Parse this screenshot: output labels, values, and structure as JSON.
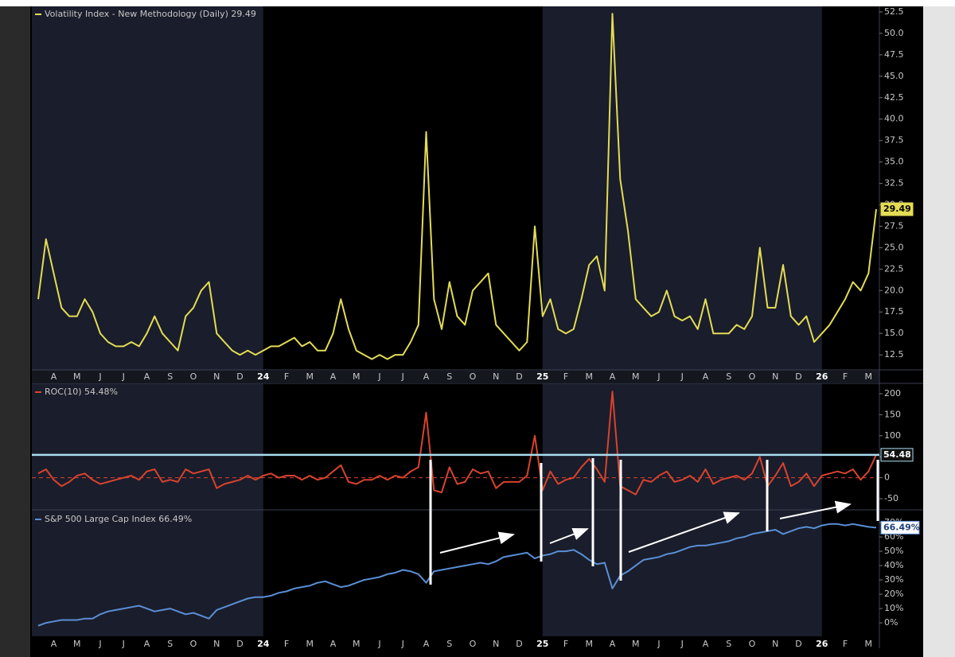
{
  "chart_data": [
    {
      "type": "line",
      "ylim": [
        10.75,
        53.15
      ],
      "yticks": [
        12.5,
        {
          "value": 15,
          "label": "15.0"
        },
        17.5,
        {
          "value": 20,
          "label": "20.0"
        },
        22.5,
        {
          "value": 25,
          "label": "25.0"
        },
        27.5,
        {
          "value": 30,
          "label": "30.0"
        },
        32.5,
        {
          "value": 35,
          "label": "35.0"
        },
        37.5,
        {
          "value": 40,
          "label": "40.0"
        },
        42.5,
        {
          "value": 45,
          "label": "45.0"
        },
        47.5,
        {
          "value": 50,
          "label": "50.0"
        },
        52.5
      ],
      "categories": [
        null,
        null,
        "A",
        null,
        null,
        "M",
        null,
        null,
        "J",
        null,
        null,
        "J",
        null,
        null,
        "A",
        null,
        null,
        "S",
        null,
        null,
        "O",
        null,
        null,
        "N",
        null,
        null,
        "D",
        null,
        null,
        "24",
        null,
        null,
        "F",
        null,
        null,
        "M",
        null,
        null,
        "A",
        null,
        null,
        "M",
        null,
        null,
        "J",
        null,
        null,
        "J",
        null,
        null,
        "A",
        null,
        null,
        "S",
        null,
        null,
        "O",
        null,
        null,
        "N",
        null,
        null,
        "D",
        null,
        null,
        "25",
        null,
        null,
        "F",
        null,
        null,
        "M",
        null,
        null,
        "A",
        null,
        null,
        "M",
        null,
        null,
        "J",
        null,
        null,
        "J",
        null,
        null,
        "A",
        null,
        null,
        "S",
        null,
        null,
        "O",
        null,
        null,
        "N",
        null,
        null,
        "D",
        null,
        null,
        "26",
        null,
        null,
        "F",
        null,
        null,
        "M",
        null
      ],
      "series": [
        {
          "name": "Volatility Index - New Methodology (Daily) 29.49",
          "color": "#e3dc55",
          "values": [
            19,
            26,
            22,
            18,
            17,
            17,
            19,
            17.5,
            15,
            14,
            13.5,
            13.5,
            14,
            13.5,
            15,
            17,
            15,
            14,
            13,
            17,
            18,
            20,
            21,
            15,
            14,
            13,
            12.5,
            13,
            12.5,
            13,
            13.5,
            13.5,
            14,
            14.5,
            13.5,
            14,
            13,
            13,
            15,
            19,
            15.5,
            13,
            12.5,
            12,
            12.5,
            12,
            12.5,
            12.5,
            14,
            16,
            38.5,
            19,
            15.5,
            21,
            17,
            16,
            20,
            21,
            22,
            16,
            15,
            14,
            13,
            14,
            27.5,
            17,
            19,
            15.5,
            15,
            15.5,
            19,
            23,
            24,
            20,
            52.3,
            33,
            27,
            19,
            18,
            17,
            17.5,
            20,
            17,
            16.5,
            17,
            15.5,
            19,
            15,
            15,
            15,
            16,
            15.5,
            17,
            25,
            18,
            18,
            23,
            17,
            16,
            17,
            14,
            15,
            16,
            17.5,
            19,
            21,
            20,
            22,
            29.49
          ]
        }
      ]
    },
    {
      "type": "line",
      "ylim": [
        -76.5,
        222.7
      ],
      "yticks": [
        -50,
        0,
        50,
        100,
        150,
        200
      ],
      "zero_line": true,
      "hline": 54.48,
      "hline_color": "#a9dcf0",
      "series": [
        {
          "name": "ROC(10) 54.48%",
          "color": "#d8432e",
          "values": [
            10,
            20,
            -5,
            -20,
            -10,
            5,
            10,
            -5,
            -15,
            -10,
            -5,
            0,
            5,
            -5,
            15,
            20,
            -10,
            -5,
            -10,
            20,
            10,
            15,
            20,
            -25,
            -15,
            -10,
            -5,
            5,
            -5,
            5,
            10,
            0,
            5,
            5,
            -5,
            5,
            -5,
            0,
            15,
            30,
            -10,
            -15,
            -5,
            -5,
            5,
            -5,
            5,
            0,
            15,
            25,
            155,
            -30,
            -35,
            25,
            -15,
            -10,
            20,
            10,
            15,
            -25,
            -10,
            -10,
            -10,
            5,
            100,
            -30,
            15,
            -15,
            -5,
            0,
            25,
            45,
            20,
            -10,
            205,
            -20,
            -30,
            -40,
            -5,
            -10,
            5,
            15,
            -10,
            -5,
            5,
            -10,
            20,
            -15,
            -5,
            0,
            5,
            -5,
            10,
            50,
            -20,
            5,
            35,
            -20,
            -10,
            10,
            -20,
            5,
            10,
            15,
            10,
            20,
            -5,
            15,
            54.48
          ]
        }
      ]
    },
    {
      "type": "line",
      "ylim": [
        -9.4,
        77.8
      ],
      "yticks": [
        {
          "value": 0,
          "label": "0%"
        },
        {
          "value": 10,
          "label": "10%"
        },
        {
          "value": 20,
          "label": "20%"
        },
        {
          "value": 30,
          "label": "30%"
        },
        {
          "value": 40,
          "label": "40%"
        },
        {
          "value": 50,
          "label": "50%"
        },
        {
          "value": 60,
          "label": "60%"
        },
        {
          "value": 70,
          "label": "70%"
        }
      ],
      "categories": [
        null,
        null,
        "A",
        null,
        null,
        "M",
        null,
        null,
        "J",
        null,
        null,
        "J",
        null,
        null,
        "A",
        null,
        null,
        "S",
        null,
        null,
        "O",
        null,
        null,
        "N",
        null,
        null,
        "D",
        null,
        null,
        "24",
        null,
        null,
        "F",
        null,
        null,
        "M",
        null,
        null,
        "A",
        null,
        null,
        "M",
        null,
        null,
        "J",
        null,
        null,
        "J",
        null,
        null,
        "A",
        null,
        null,
        "S",
        null,
        null,
        "O",
        null,
        null,
        "N",
        null,
        null,
        "D",
        null,
        null,
        "25",
        null,
        null,
        "F",
        null,
        null,
        "M",
        null,
        null,
        "A",
        null,
        null,
        "M",
        null,
        null,
        "J",
        null,
        null,
        "J",
        null,
        null,
        "A",
        null,
        null,
        "S",
        null,
        null,
        "O",
        null,
        null,
        "N",
        null,
        null,
        "D",
        null,
        null,
        "26",
        null,
        null,
        "F",
        null,
        null,
        "M",
        null
      ],
      "last_value_label": "66.49%",
      "series": [
        {
          "name": "S&P 500 Large Cap Index 66.49%",
          "color": "#5a8fd6",
          "values": [
            -2,
            0,
            1,
            2,
            2,
            2,
            3,
            3,
            6,
            8,
            9,
            10,
            11,
            12,
            10,
            8,
            9,
            10,
            8,
            6,
            7,
            5,
            3,
            9,
            11,
            13,
            15,
            17,
            18,
            18,
            19,
            21,
            22,
            24,
            25,
            26,
            28,
            29,
            27,
            25,
            26,
            28,
            30,
            31,
            32,
            34,
            35,
            37,
            36,
            34,
            28,
            36,
            37,
            38,
            39,
            40,
            41,
            42,
            41,
            43,
            46,
            47,
            48,
            49,
            45,
            47,
            48,
            50,
            50,
            51,
            48,
            44,
            41,
            42,
            24,
            33,
            36,
            40,
            44,
            45,
            46,
            48,
            49,
            51,
            53,
            54,
            54,
            55,
            56,
            57,
            59,
            60,
            62,
            63,
            64,
            65,
            62,
            64,
            66,
            67,
            66,
            68,
            69,
            69,
            68,
            69,
            68,
            67,
            66.49
          ]
        }
      ]
    }
  ]
}
